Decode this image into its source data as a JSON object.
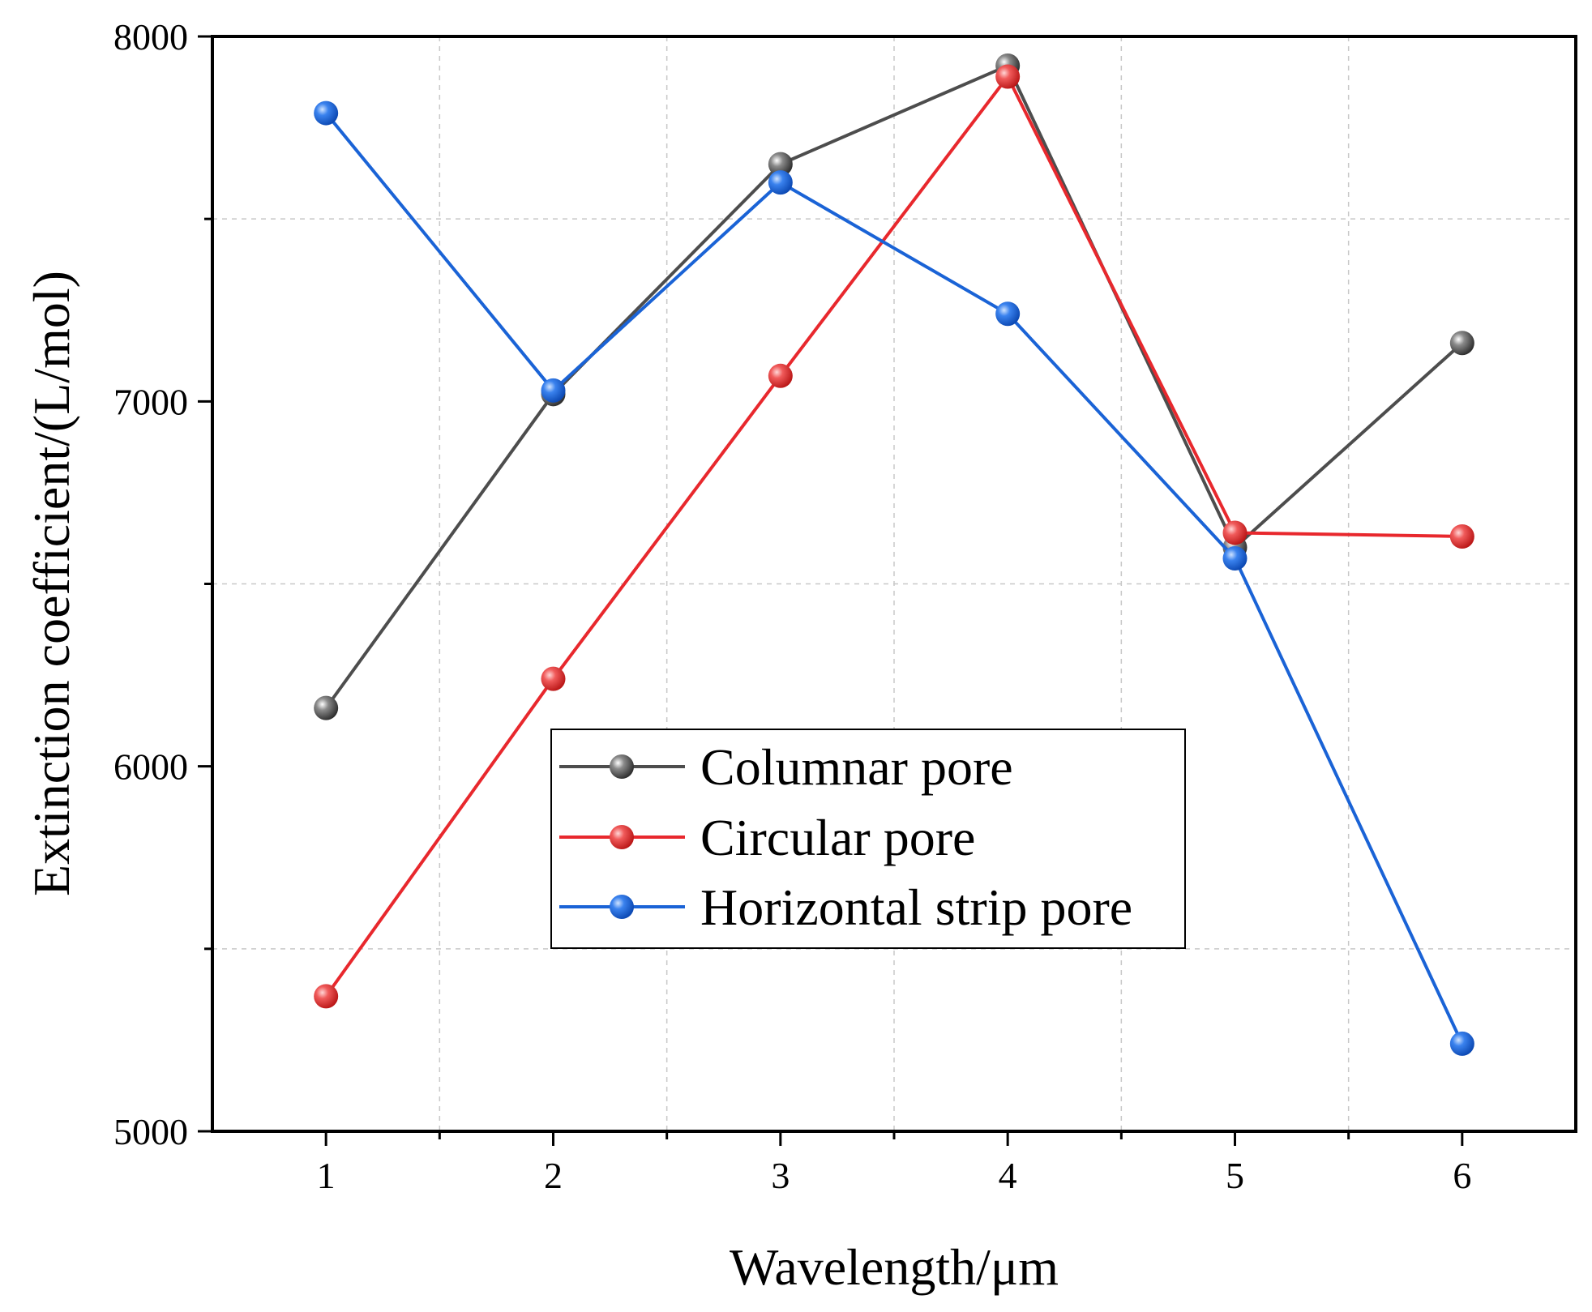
{
  "chart_data": {
    "type": "line",
    "title": "",
    "xlabel": "Wavelength/μm",
    "ylabel": "Extinction coefficient/(L/mol)",
    "x": [
      1,
      2,
      3,
      4,
      5,
      6
    ],
    "xlim": [
      0.5,
      6.5
    ],
    "ylim": [
      5000,
      8000
    ],
    "xticks": [
      "1",
      "2",
      "3",
      "4",
      "5",
      "6"
    ],
    "yticks": [
      "5000",
      "6000",
      "7000",
      "8000"
    ],
    "grid": true,
    "legend_position": "lower-center",
    "series": [
      {
        "name": "Columnar pore",
        "color": "#4d4d4d",
        "values": [
          6160,
          7020,
          7650,
          7920,
          6600,
          7160
        ]
      },
      {
        "name": "Circular pore",
        "color": "#e8282d",
        "values": [
          5370,
          6240,
          7070,
          7890,
          6640,
          6630
        ]
      },
      {
        "name": "Horizontal strip pore",
        "color": "#1a63d6",
        "values": [
          7790,
          7030,
          7600,
          7240,
          6570,
          5240
        ]
      }
    ]
  }
}
